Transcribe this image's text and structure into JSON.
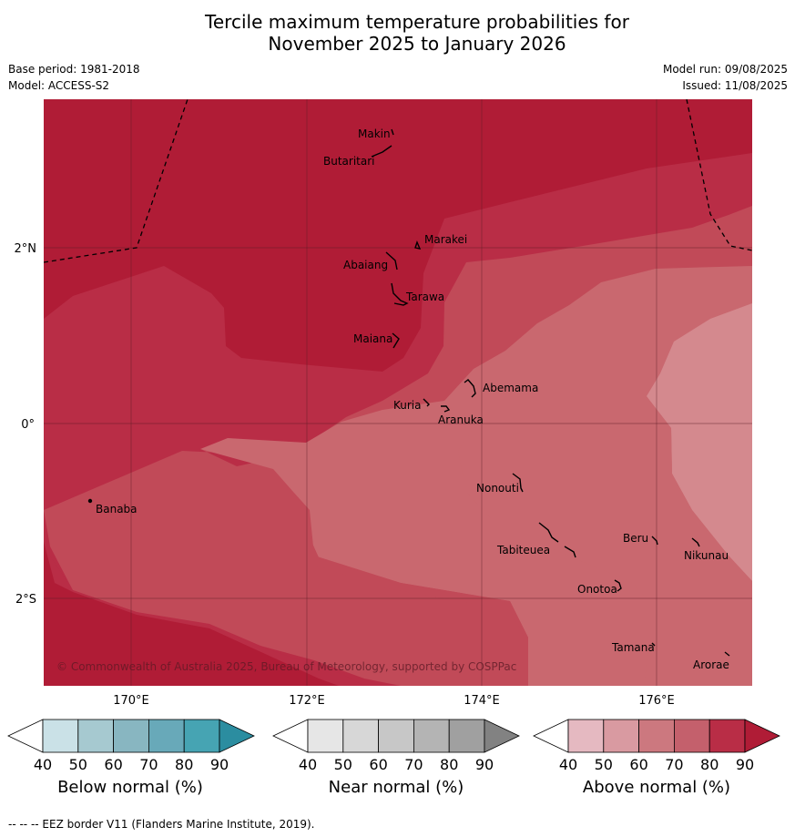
{
  "title_line1": "Tercile maximum temperature probabilities for",
  "title_line2": "November 2025 to January 2026",
  "meta": {
    "base_period": "Base period: 1981-2018",
    "model": "Model: ACCESS-S2",
    "model_run": "Model run: 09/08/2025",
    "issued": "Issued: 11/08/2025"
  },
  "map": {
    "copyright": "© Commonwealth of Australia 2025, Bureau of Meteorology, supported by COSPPac",
    "lat_labels": [
      {
        "text": "2°N",
        "lat": 2
      },
      {
        "text": "0°",
        "lat": 0
      },
      {
        "text": "2°S",
        "lat": -2
      }
    ],
    "lon_labels": [
      {
        "text": "170°E",
        "lon": 170
      },
      {
        "text": "172°E",
        "lon": 172
      },
      {
        "text": "174°E",
        "lon": 174
      },
      {
        "text": "176°E",
        "lon": 176
      }
    ],
    "islands": [
      {
        "name": "Makin"
      },
      {
        "name": "Butaritari"
      },
      {
        "name": "Marakei"
      },
      {
        "name": "Abaiang"
      },
      {
        "name": "Tarawa"
      },
      {
        "name": "Maiana"
      },
      {
        "name": "Abemama"
      },
      {
        "name": "Kuria"
      },
      {
        "name": "Aranuka"
      },
      {
        "name": "Banaba"
      },
      {
        "name": "Nonouti"
      },
      {
        "name": "Beru"
      },
      {
        "name": "Nikunau"
      },
      {
        "name": "Tabiteuea"
      },
      {
        "name": "Onotoa"
      },
      {
        "name": "Tamana"
      },
      {
        "name": "Arorae"
      }
    ],
    "colors": {
      "above_90": "#b01c36",
      "above_80": "#b92d46",
      "above_70": "#c14a58",
      "above_60": "#c9686f",
      "above_50": "#d4898e"
    }
  },
  "colorbars": [
    {
      "label": "Below normal (%)",
      "ticks": [
        "40",
        "50",
        "60",
        "70",
        "80",
        "90"
      ],
      "colors": [
        "#ffffff",
        "#cae1e7",
        "#a6c9d0",
        "#88b6c1",
        "#68a9b9",
        "#46a4b3",
        "#2b8da0"
      ]
    },
    {
      "label": "Near normal (%)",
      "ticks": [
        "40",
        "50",
        "60",
        "70",
        "80",
        "90"
      ],
      "colors": [
        "#ffffff",
        "#e6e6e6",
        "#d7d7d7",
        "#c7c7c7",
        "#b4b4b4",
        "#a0a0a0",
        "#828282"
      ]
    },
    {
      "label": "Above normal (%)",
      "ticks": [
        "40",
        "50",
        "60",
        "70",
        "80",
        "90"
      ],
      "colors": [
        "#ffffff",
        "#e5b9c1",
        "#d99aa1",
        "#cc787f",
        "#c4606c",
        "#b92d46",
        "#b01c36"
      ]
    }
  ],
  "footnote": "--  --  -- EEZ border V11 (Flanders Marine Institute, 2019)."
}
